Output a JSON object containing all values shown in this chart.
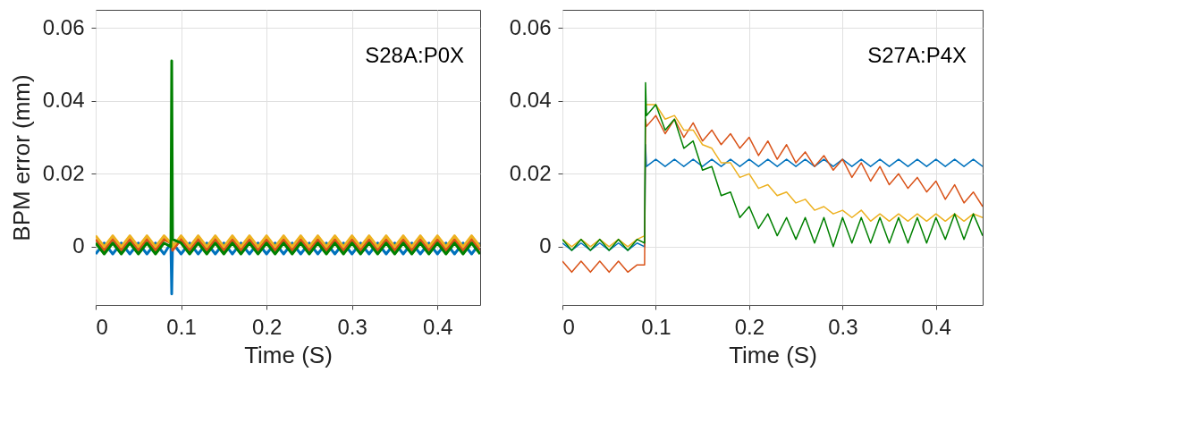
{
  "chart_data": [
    {
      "type": "line",
      "ylabel": "BPM error (mm)",
      "xlabel": "Time (S)",
      "annotations": [
        "S28A:P0X"
      ],
      "grid": true,
      "xlim": [
        0,
        0.45
      ],
      "ylim": [
        -0.016,
        0.065
      ],
      "xticks": [
        0,
        0.1,
        0.2,
        0.3,
        0.4
      ],
      "yticks": [
        0,
        0.02,
        0.04,
        0.06
      ],
      "x": [
        0,
        0.01,
        0.02,
        0.03,
        0.04,
        0.05,
        0.06,
        0.07,
        0.08,
        0.088,
        0.089,
        0.09,
        0.1,
        0.11,
        0.12,
        0.13,
        0.14,
        0.15,
        0.16,
        0.17,
        0.18,
        0.19,
        0.2,
        0.21,
        0.22,
        0.23,
        0.24,
        0.25,
        0.26,
        0.27,
        0.28,
        0.29,
        0.3,
        0.31,
        0.32,
        0.33,
        0.34,
        0.35,
        0.36,
        0.37,
        0.38,
        0.39,
        0.4,
        0.41,
        0.42,
        0.43,
        0.44,
        0.45
      ],
      "series": [
        {
          "color": "#0072bd",
          "values": [
            -0.002,
            0.001,
            -0.002,
            0.001,
            -0.002,
            0.001,
            -0.002,
            0.001,
            -0.002,
            0.001,
            -0.013,
            0.001,
            -0.002,
            0.001,
            -0.002,
            0.001,
            -0.002,
            0.001,
            -0.002,
            0.001,
            -0.002,
            0.001,
            -0.002,
            0.001,
            -0.002,
            0.001,
            -0.002,
            0.001,
            -0.002,
            0.001,
            -0.002,
            0.001,
            -0.002,
            0.001,
            -0.002,
            0.001,
            -0.002,
            0.001,
            -0.002,
            0.001,
            -0.002,
            0.001,
            -0.002,
            0.001,
            -0.002,
            0.001,
            -0.002,
            0.001
          ]
        },
        {
          "color": "#d95319",
          "values": [
            0.002,
            -0.001,
            0.002,
            -0.001,
            0.002,
            -0.001,
            0.002,
            -0.001,
            0.002,
            0.001,
            0.002,
            -0.001,
            0.002,
            -0.001,
            0.002,
            -0.001,
            0.002,
            -0.001,
            0.002,
            -0.001,
            0.002,
            -0.001,
            0.002,
            -0.001,
            0.002,
            -0.001,
            0.002,
            -0.001,
            0.002,
            -0.001,
            0.002,
            -0.001,
            0.002,
            -0.001,
            0.002,
            -0.001,
            0.002,
            -0.001,
            0.002,
            -0.001,
            0.002,
            -0.001,
            0.002,
            -0.001,
            0.002,
            -0.001,
            0.002,
            -0.001
          ]
        },
        {
          "color": "#edb120",
          "values": [
            0.003,
            0,
            0.003,
            0,
            0.003,
            0,
            0.003,
            0,
            0.003,
            0.001,
            0.003,
            0,
            0.003,
            0,
            0.003,
            0,
            0.003,
            0,
            0.003,
            0,
            0.003,
            0,
            0.003,
            0,
            0.003,
            0,
            0.003,
            0,
            0.003,
            0,
            0.003,
            0,
            0.003,
            0,
            0.003,
            0,
            0.003,
            0,
            0.003,
            0,
            0.003,
            0,
            0.003,
            0,
            0.003,
            0,
            0.003,
            0
          ]
        },
        {
          "color": "#008000",
          "values": [
            0.001,
            -0.002,
            0.001,
            -0.002,
            0.001,
            -0.002,
            0.001,
            -0.002,
            0.001,
            0,
            0.051,
            0.002,
            0.001,
            -0.002,
            0.001,
            -0.002,
            0.001,
            -0.002,
            0.001,
            -0.002,
            0.001,
            -0.002,
            0.001,
            -0.002,
            0.001,
            -0.002,
            0.001,
            -0.002,
            0.001,
            -0.002,
            0.001,
            -0.002,
            0.001,
            -0.002,
            0.001,
            -0.002,
            0.001,
            -0.002,
            0.001,
            -0.002,
            0.001,
            -0.002,
            0.001,
            -0.002,
            0.001,
            -0.002,
            0.001,
            -0.002
          ]
        }
      ]
    },
    {
      "type": "line",
      "xlabel": "Time (S)",
      "annotations": [
        "S27A:P4X"
      ],
      "grid": true,
      "xlim": [
        0,
        0.45
      ],
      "ylim": [
        -0.016,
        0.065
      ],
      "xticks": [
        0,
        0.1,
        0.2,
        0.3,
        0.4
      ],
      "yticks": [
        0,
        0.02,
        0.04,
        0.06
      ],
      "x": [
        0,
        0.01,
        0.02,
        0.03,
        0.04,
        0.05,
        0.06,
        0.07,
        0.08,
        0.088,
        0.089,
        0.09,
        0.1,
        0.11,
        0.12,
        0.13,
        0.14,
        0.15,
        0.16,
        0.17,
        0.18,
        0.19,
        0.2,
        0.21,
        0.22,
        0.23,
        0.24,
        0.25,
        0.26,
        0.27,
        0.28,
        0.29,
        0.3,
        0.31,
        0.32,
        0.33,
        0.34,
        0.35,
        0.36,
        0.37,
        0.38,
        0.39,
        0.4,
        0.41,
        0.42,
        0.43,
        0.44,
        0.45
      ],
      "series": [
        {
          "color": "#0072bd",
          "values": [
            0.001,
            -0.001,
            0.001,
            -0.001,
            0.001,
            -0.001,
            0.001,
            -0.001,
            0.001,
            0,
            0.028,
            0.022,
            0.024,
            0.022,
            0.024,
            0.022,
            0.024,
            0.022,
            0.024,
            0.022,
            0.024,
            0.022,
            0.024,
            0.022,
            0.024,
            0.022,
            0.024,
            0.022,
            0.024,
            0.022,
            0.024,
            0.022,
            0.024,
            0.022,
            0.024,
            0.022,
            0.024,
            0.022,
            0.024,
            0.022,
            0.024,
            0.022,
            0.024,
            0.022,
            0.024,
            0.022,
            0.024,
            0.022
          ]
        },
        {
          "color": "#d95319",
          "values": [
            -0.004,
            -0.007,
            -0.004,
            -0.007,
            -0.004,
            -0.007,
            -0.004,
            -0.007,
            -0.005,
            -0.005,
            0.035,
            0.033,
            0.036,
            0.031,
            0.035,
            0.03,
            0.034,
            0.029,
            0.032,
            0.028,
            0.031,
            0.027,
            0.03,
            0.025,
            0.029,
            0.024,
            0.028,
            0.023,
            0.026,
            0.022,
            0.025,
            0.021,
            0.024,
            0.019,
            0.023,
            0.018,
            0.022,
            0.017,
            0.02,
            0.016,
            0.019,
            0.015,
            0.018,
            0.013,
            0.017,
            0.012,
            0.015,
            0.011
          ]
        },
        {
          "color": "#edb120",
          "values": [
            0.002,
            0,
            0.002,
            0,
            0.002,
            0,
            0.002,
            0,
            0.002,
            0.003,
            null,
            0.039,
            0.039,
            0.035,
            0.036,
            0.032,
            0.032,
            0.028,
            0.027,
            0.023,
            0.023,
            0.019,
            0.02,
            0.016,
            0.017,
            0.014,
            0.015,
            0.012,
            0.013,
            0.01,
            0.011,
            0.009,
            0.01,
            0.008,
            0.01,
            0.007,
            0.009,
            0.007,
            0.009,
            0.007,
            0.009,
            0.007,
            0.009,
            0.007,
            0.009,
            0.007,
            0.009,
            0.008
          ]
        },
        {
          "color": "#008000",
          "values": [
            0.002,
            -0.001,
            0.002,
            -0.001,
            0.002,
            -0.001,
            0.002,
            -0.001,
            0.002,
            0.001,
            0.045,
            0.036,
            0.039,
            0.032,
            0.035,
            0.027,
            0.029,
            0.021,
            0.022,
            0.014,
            0.015,
            0.008,
            0.011,
            0.005,
            0.009,
            0.003,
            0.008,
            0.002,
            0.008,
            0.001,
            0.008,
            0,
            0.008,
            0.001,
            0.008,
            0.001,
            0.008,
            0.001,
            0.008,
            0.001,
            0.008,
            0.001,
            0.008,
            0.002,
            0.009,
            0.002,
            0.009,
            0.003
          ]
        }
      ]
    }
  ]
}
